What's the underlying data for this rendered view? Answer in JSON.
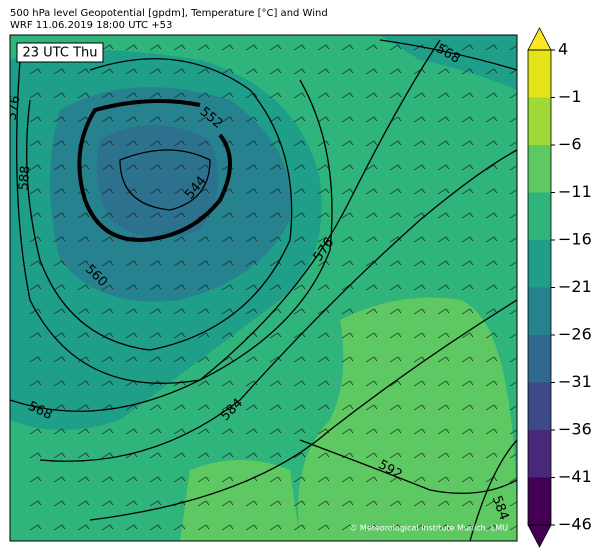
{
  "header": {
    "title_line1": "500 hPa level Geopotential [gpdm], Temperature [°C] and Wind",
    "title_line2": "WRF 11.06.2019 18:00 UTC +53"
  },
  "map": {
    "time_label": "23 UTC Thu",
    "copyright": "© Meteorological Institute Munich, LMU",
    "contour_labels": [
      576,
      588,
      552,
      544,
      560,
      568,
      576,
      584,
      592,
      584,
      568
    ]
  },
  "colorbar": {
    "ticks": [
      4,
      {
        "value": -1,
        "label": "−1"
      },
      {
        "value": -6,
        "label": "−6"
      },
      {
        "value": -11,
        "label": "−11"
      },
      {
        "value": -16,
        "label": "−16"
      },
      {
        "value": -21,
        "label": "−21"
      },
      {
        "value": -26,
        "label": "−26"
      },
      {
        "value": -31,
        "label": "−31"
      },
      {
        "value": -36,
        "label": "−36"
      },
      {
        "value": -41,
        "label": "−41"
      },
      {
        "value": -46,
        "label": "−46"
      }
    ],
    "colors": [
      "#e5e419",
      "#a0da39",
      "#5ec962",
      "#2fb47c",
      "#1f9e89",
      "#26828e",
      "#31688e",
      "#3e4989",
      "#482878",
      "#440154"
    ],
    "extend_colors": [
      "#fde725",
      "#440154"
    ]
  }
}
